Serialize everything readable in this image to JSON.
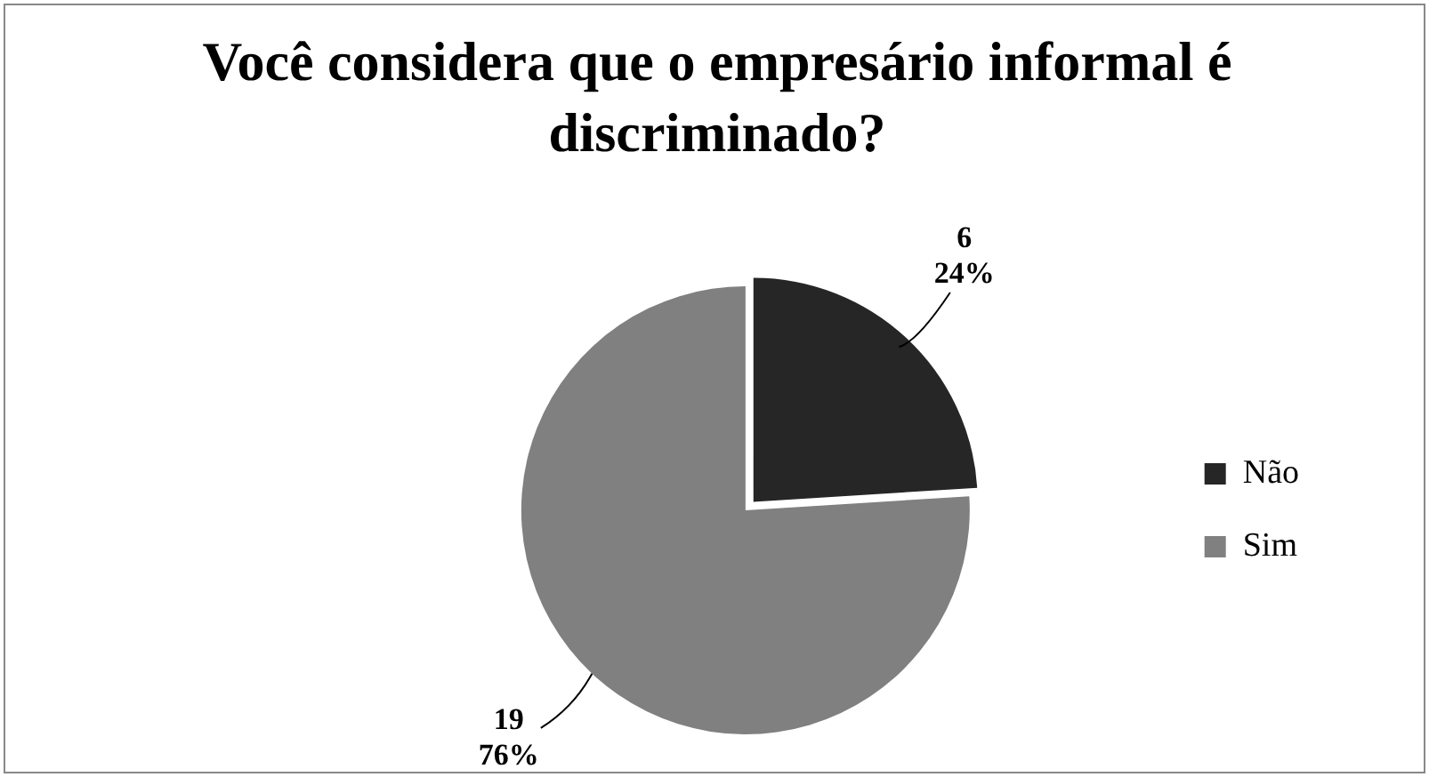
{
  "chart_data": {
    "type": "pie",
    "title": "Você considera que o empresário informal é discriminado?",
    "categories": [
      "Não",
      "Sim"
    ],
    "values": [
      6,
      19
    ],
    "colors": [
      "#262626",
      "#808080"
    ],
    "value_labels": [
      "6\n24%",
      "19\n76%"
    ],
    "legend": "right"
  }
}
